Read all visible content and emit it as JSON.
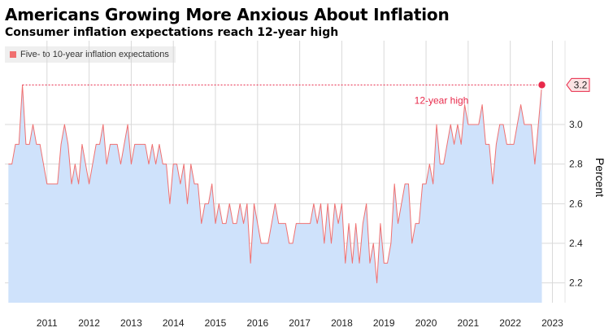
{
  "header": {
    "title": "Americans Growing More Anxious About Inflation",
    "subtitle": "Consumer inflation expectations reach 12-year high"
  },
  "legend": {
    "label": "Five- to 10-year inflation expectations"
  },
  "colors": {
    "line": "#f07070",
    "fill": "#cfe2fb",
    "accent": "#e8294a",
    "grid": "#d9d9d9"
  },
  "chart_data": {
    "type": "area",
    "title": "Americans Growing More Anxious About Inflation",
    "subtitle": "Consumer inflation expectations reach 12-year high",
    "xlabel": "",
    "ylabel": "Percent",
    "ylim": [
      2.1,
      3.3
    ],
    "xlim": [
      2010.5,
      2023.8
    ],
    "yticks": [
      2.2,
      2.4,
      2.6,
      2.8,
      3.0
    ],
    "xticks": [
      "2011",
      "2012",
      "2013",
      "2014",
      "2015",
      "2016",
      "2017",
      "2018",
      "2019",
      "2020",
      "2021",
      "2022",
      "2023"
    ],
    "grid": true,
    "legend_position": "top-left",
    "series": [
      {
        "name": "Five- to 10-year inflation expectations",
        "start": [
          2010,
          8
        ],
        "values": [
          2.8,
          2.8,
          2.9,
          2.9,
          3.2,
          2.9,
          2.9,
          3.0,
          2.9,
          2.9,
          2.8,
          2.7,
          2.7,
          2.7,
          2.7,
          2.9,
          3.0,
          2.9,
          2.7,
          2.8,
          2.7,
          2.9,
          2.8,
          2.7,
          2.8,
          2.9,
          2.9,
          3.0,
          2.8,
          2.9,
          2.9,
          2.9,
          2.8,
          2.9,
          3.0,
          2.8,
          2.9,
          2.9,
          2.9,
          2.9,
          2.8,
          2.9,
          2.8,
          2.9,
          2.8,
          2.8,
          2.6,
          2.8,
          2.8,
          2.7,
          2.8,
          2.6,
          2.8,
          2.7,
          2.7,
          2.5,
          2.6,
          2.6,
          2.7,
          2.5,
          2.6,
          2.5,
          2.5,
          2.6,
          2.5,
          2.5,
          2.6,
          2.5,
          2.6,
          2.3,
          2.6,
          2.5,
          2.4,
          2.4,
          2.4,
          2.5,
          2.6,
          2.5,
          2.5,
          2.5,
          2.4,
          2.4,
          2.5,
          2.5,
          2.5,
          2.5,
          2.5,
          2.6,
          2.5,
          2.6,
          2.4,
          2.6,
          2.4,
          2.6,
          2.5,
          2.6,
          2.3,
          2.5,
          2.3,
          2.5,
          2.3,
          2.5,
          2.6,
          2.3,
          2.4,
          2.2,
          2.5,
          2.3,
          2.3,
          2.4,
          2.7,
          2.5,
          2.6,
          2.7,
          2.7,
          2.4,
          2.5,
          2.5,
          2.7,
          2.7,
          2.8,
          2.7,
          3.0,
          2.8,
          2.8,
          2.9,
          3.0,
          2.9,
          3.0,
          2.9,
          3.1,
          3.0,
          3.0,
          3.0,
          3.0,
          3.1,
          2.9,
          2.9,
          2.7,
          2.9,
          3.0,
          3.0,
          2.9,
          2.9,
          2.9,
          3.0,
          3.1,
          3.0,
          3.0,
          3.0,
          2.8,
          3.0,
          3.2
        ]
      }
    ],
    "annotations": [
      {
        "text": "12-year high",
        "value": 3.2
      },
      {
        "text": "3.2",
        "value": 3.2,
        "kind": "last-value-tag"
      }
    ]
  }
}
